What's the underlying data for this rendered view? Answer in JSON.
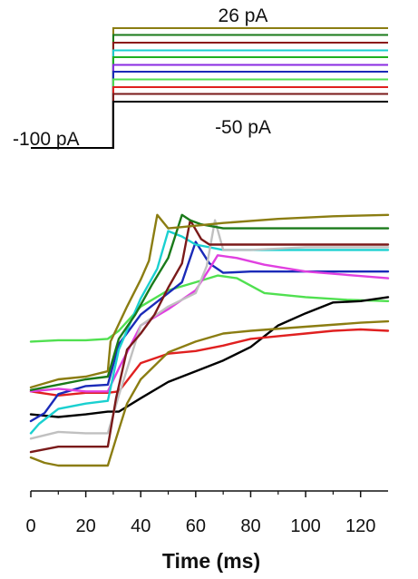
{
  "chart_data": [
    {
      "type": "line",
      "title": "",
      "panel": "stimulus",
      "labels": {
        "top": "26 pA",
        "bottom": "-50 pA",
        "holding": "-100 pA"
      },
      "xlim": [
        0,
        130
      ],
      "step_onset_ms": 30,
      "levels_pA": [
        26,
        19,
        11,
        3,
        -4,
        -12,
        -19,
        -27,
        -35,
        -42,
        -50
      ],
      "colors": [
        "#8b7d12",
        "#1a7a1a",
        "#8b1a1a",
        "#1ad0d0",
        "#20b020",
        "#8a2be2",
        "#1a2ab8",
        "#50e050",
        "#e02020",
        "#7a1a1a",
        "#000000"
      ]
    },
    {
      "type": "line",
      "title": "",
      "panel": "response",
      "xlabel": "Time (ms)",
      "ylabel": "",
      "xlim": [
        0,
        130
      ],
      "xticks": [
        0,
        20,
        40,
        60,
        80,
        100,
        120
      ],
      "ylim": [
        0,
        1
      ],
      "series": [
        {
          "color": "#50e050",
          "x": [
            0,
            10,
            20,
            28,
            32,
            40,
            50,
            60,
            68,
            75,
            85,
            100,
            115,
            130
          ],
          "y": [
            0.46,
            0.465,
            0.465,
            0.47,
            0.5,
            0.59,
            0.65,
            0.68,
            0.705,
            0.695,
            0.64,
            0.625,
            0.615,
            0.61
          ]
        },
        {
          "color": "#000000",
          "x": [
            0,
            10,
            20,
            28,
            32,
            40,
            50,
            60,
            70,
            80,
            90,
            100,
            110,
            120,
            130
          ],
          "y": [
            0.19,
            0.18,
            0.19,
            0.2,
            0.2,
            0.25,
            0.31,
            0.35,
            0.39,
            0.44,
            0.52,
            0.565,
            0.605,
            0.61,
            0.625
          ]
        },
        {
          "color": "#e02020",
          "x": [
            0,
            10,
            20,
            28,
            32,
            40,
            50,
            60,
            70,
            80,
            90,
            100,
            110,
            120,
            130
          ],
          "y": [
            0.275,
            0.26,
            0.27,
            0.27,
            0.275,
            0.38,
            0.415,
            0.425,
            0.445,
            0.47,
            0.48,
            0.49,
            0.5,
            0.505,
            0.5
          ]
        },
        {
          "color": "#1a2ab8",
          "x": [
            0,
            5,
            10,
            20,
            28,
            32,
            40,
            50,
            55,
            60,
            65,
            70,
            80,
            100,
            130
          ],
          "y": [
            0.165,
            0.195,
            0.265,
            0.295,
            0.3,
            0.45,
            0.56,
            0.64,
            0.68,
            0.83,
            0.75,
            0.715,
            0.72,
            0.72,
            0.72
          ]
        },
        {
          "color": "#e040e0",
          "x": [
            0,
            10,
            20,
            28,
            32,
            40,
            50,
            60,
            65,
            68,
            75,
            85,
            100,
            130
          ],
          "y": [
            0.275,
            0.285,
            0.275,
            0.275,
            0.36,
            0.52,
            0.58,
            0.65,
            0.73,
            0.78,
            0.77,
            0.745,
            0.72,
            0.695
          ]
        },
        {
          "color": "#1ad0d0",
          "x": [
            0,
            3,
            10,
            20,
            28,
            32,
            40,
            46,
            50,
            55,
            60,
            70,
            90,
            130
          ],
          "y": [
            0.12,
            0.155,
            0.21,
            0.23,
            0.24,
            0.43,
            0.62,
            0.73,
            0.87,
            0.85,
            0.82,
            0.8,
            0.8,
            0.8
          ]
        },
        {
          "color": "#c0c0c0",
          "x": [
            0,
            10,
            20,
            28,
            32,
            40,
            50,
            60,
            64,
            67,
            70,
            80,
            100,
            130
          ],
          "y": [
            0.1,
            0.125,
            0.12,
            0.12,
            0.26,
            0.52,
            0.59,
            0.64,
            0.74,
            0.91,
            0.8,
            0.8,
            0.81,
            0.81
          ]
        },
        {
          "color": "#7a1a1a",
          "x": [
            0,
            10,
            20,
            28,
            31,
            35,
            40,
            45,
            50,
            55,
            58,
            62,
            65,
            80,
            100,
            130
          ],
          "y": [
            0.05,
            0.07,
            0.07,
            0.07,
            0.25,
            0.43,
            0.49,
            0.56,
            0.66,
            0.75,
            0.91,
            0.84,
            0.82,
            0.82,
            0.82,
            0.82
          ]
        },
        {
          "color": "#1a7a1a",
          "x": [
            0,
            10,
            20,
            28,
            32,
            38,
            44,
            50,
            55,
            58,
            62,
            70,
            90,
            110,
            130
          ],
          "y": [
            0.28,
            0.3,
            0.32,
            0.33,
            0.47,
            0.56,
            0.67,
            0.77,
            0.93,
            0.91,
            0.895,
            0.88,
            0.88,
            0.88,
            0.88
          ]
        },
        {
          "color": "#8b7d12",
          "x": [
            0,
            10,
            20,
            28,
            29,
            35,
            40,
            43,
            46,
            50,
            55,
            70,
            90,
            110,
            130
          ],
          "y": [
            0.29,
            0.32,
            0.33,
            0.35,
            0.46,
            0.59,
            0.69,
            0.76,
            0.93,
            0.88,
            0.885,
            0.9,
            0.915,
            0.925,
            0.93
          ]
        },
        {
          "color": "#8b7d12",
          "x": [
            0,
            5,
            10,
            20,
            28,
            31,
            35,
            40,
            50,
            60,
            70,
            80,
            100,
            120,
            130
          ],
          "y": [
            0.03,
            0.01,
            0.0,
            0.0,
            0.0,
            0.1,
            0.23,
            0.32,
            0.42,
            0.46,
            0.49,
            0.5,
            0.515,
            0.53,
            0.535
          ]
        }
      ]
    }
  ]
}
